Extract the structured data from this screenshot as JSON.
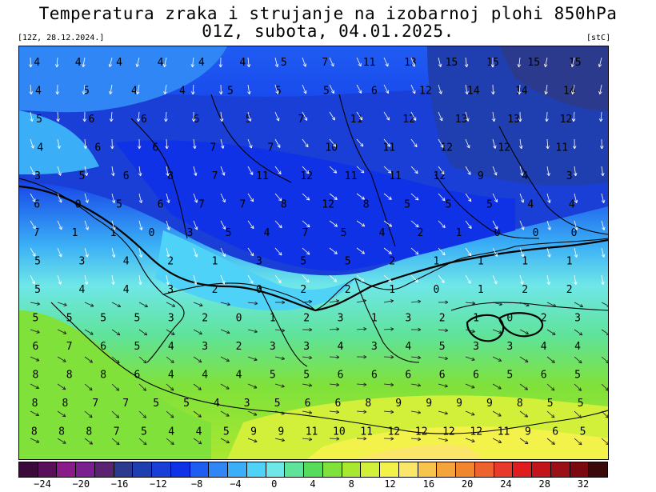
{
  "header": {
    "title_line1": "Temperatura zraka i strujanje na izobarnoj plohi 850hPa",
    "title_line2": "01Z, subota, 04.01.2025.",
    "run_info": "[12Z, 28.12.2024.]",
    "unit": "[stC]"
  },
  "map": {
    "field": "temperature_850hPa",
    "overlay_icon": "wind-arrow-icon",
    "contour_labels": [
      {
        "row": 0,
        "values": [
          "4",
          "4",
          "4",
          "4",
          "4",
          "4",
          "5",
          "7",
          "11",
          "13",
          "15",
          "15",
          "15",
          "15"
        ]
      },
      {
        "row": 1,
        "values": [
          "4",
          "5",
          "4",
          "4",
          "5",
          "5",
          "5",
          "6",
          "12",
          "14",
          "14",
          "14"
        ]
      },
      {
        "row": 2,
        "values": [
          "5",
          "6",
          "6",
          "6",
          "5",
          "7",
          "11",
          "12",
          "13",
          "13",
          "12"
        ]
      },
      {
        "row": 3,
        "values": [
          "4",
          "6",
          "6",
          "7",
          "7",
          "10",
          "11",
          "12",
          "12",
          "11"
        ]
      },
      {
        "row": 4,
        "values": [
          "3",
          "5",
          "6",
          "8",
          "7",
          "11",
          "12",
          "11",
          "11",
          "12",
          "9",
          "4",
          "3"
        ]
      },
      {
        "row": 5,
        "values": [
          "6",
          "0",
          "5",
          "6",
          "7",
          "7",
          "8",
          "12",
          "8",
          "5",
          "5",
          "5",
          "4",
          "4"
        ]
      },
      {
        "row": 6,
        "values": [
          "7",
          "1",
          "1",
          "0",
          "3",
          "5",
          "4",
          "7",
          "5",
          "4",
          "2",
          "1",
          "0",
          "0",
          "0"
        ]
      },
      {
        "row": 7,
        "values": [
          "5",
          "3",
          "4",
          "2",
          "1",
          "3",
          "5",
          "5",
          "2",
          "1",
          "1",
          "1",
          "1"
        ]
      },
      {
        "row": 8,
        "values": [
          "5",
          "4",
          "4",
          "3",
          "2",
          "0",
          "2",
          "2",
          "1",
          "0",
          "1",
          "2",
          "2"
        ]
      },
      {
        "row": 9,
        "values": [
          "5",
          "5",
          "5",
          "5",
          "3",
          "2",
          "0",
          "1",
          "2",
          "3",
          "1",
          "3",
          "2",
          "1",
          "0",
          "2",
          "3"
        ]
      },
      {
        "row": 10,
        "values": [
          "6",
          "7",
          "6",
          "5",
          "4",
          "3",
          "2",
          "3",
          "3",
          "4",
          "3",
          "4",
          "5",
          "3",
          "3",
          "4",
          "4"
        ]
      },
      {
        "row": 11,
        "values": [
          "8",
          "8",
          "8",
          "6",
          "4",
          "4",
          "4",
          "5",
          "5",
          "6",
          "6",
          "6",
          "6",
          "6",
          "5",
          "6",
          "5"
        ]
      },
      {
        "row": 12,
        "values": [
          "8",
          "8",
          "7",
          "7",
          "5",
          "5",
          "4",
          "3",
          "5",
          "6",
          "6",
          "8",
          "9",
          "9",
          "9",
          "9",
          "8",
          "5",
          "5"
        ]
      },
      {
        "row": 13,
        "values": [
          "8",
          "8",
          "8",
          "7",
          "5",
          "4",
          "4",
          "5",
          "9",
          "9",
          "11",
          "10",
          "11",
          "12",
          "12",
          "12",
          "12",
          "11",
          "9",
          "6",
          "5"
        ]
      }
    ]
  },
  "legend": {
    "colors": [
      "#3a0a3a",
      "#5a0f5a",
      "#8a1a8a",
      "#7a1f8f",
      "#5a2270",
      "#2b3a8c",
      "#1f3fb0",
      "#1a3fd6",
      "#1032e6",
      "#1f5cf2",
      "#2f86f4",
      "#3aaef6",
      "#4fd2f7",
      "#6fe7e8",
      "#5fe39a",
      "#56dc5a",
      "#7fe13a",
      "#a8e830",
      "#d2ef3a",
      "#f2f24a",
      "#fbe66a",
      "#f7c54c",
      "#f3a53c",
      "#f1862e",
      "#ee6230",
      "#e83a2a",
      "#e01c1c",
      "#c2141a",
      "#9a1016",
      "#7a0a10",
      "#3a0a0a"
    ],
    "tick_labels": [
      "−24",
      "−20",
      "−16",
      "−12",
      "−8",
      "−4",
      "0",
      "4",
      "8",
      "12",
      "16",
      "20",
      "24",
      "28",
      "32"
    ]
  }
}
